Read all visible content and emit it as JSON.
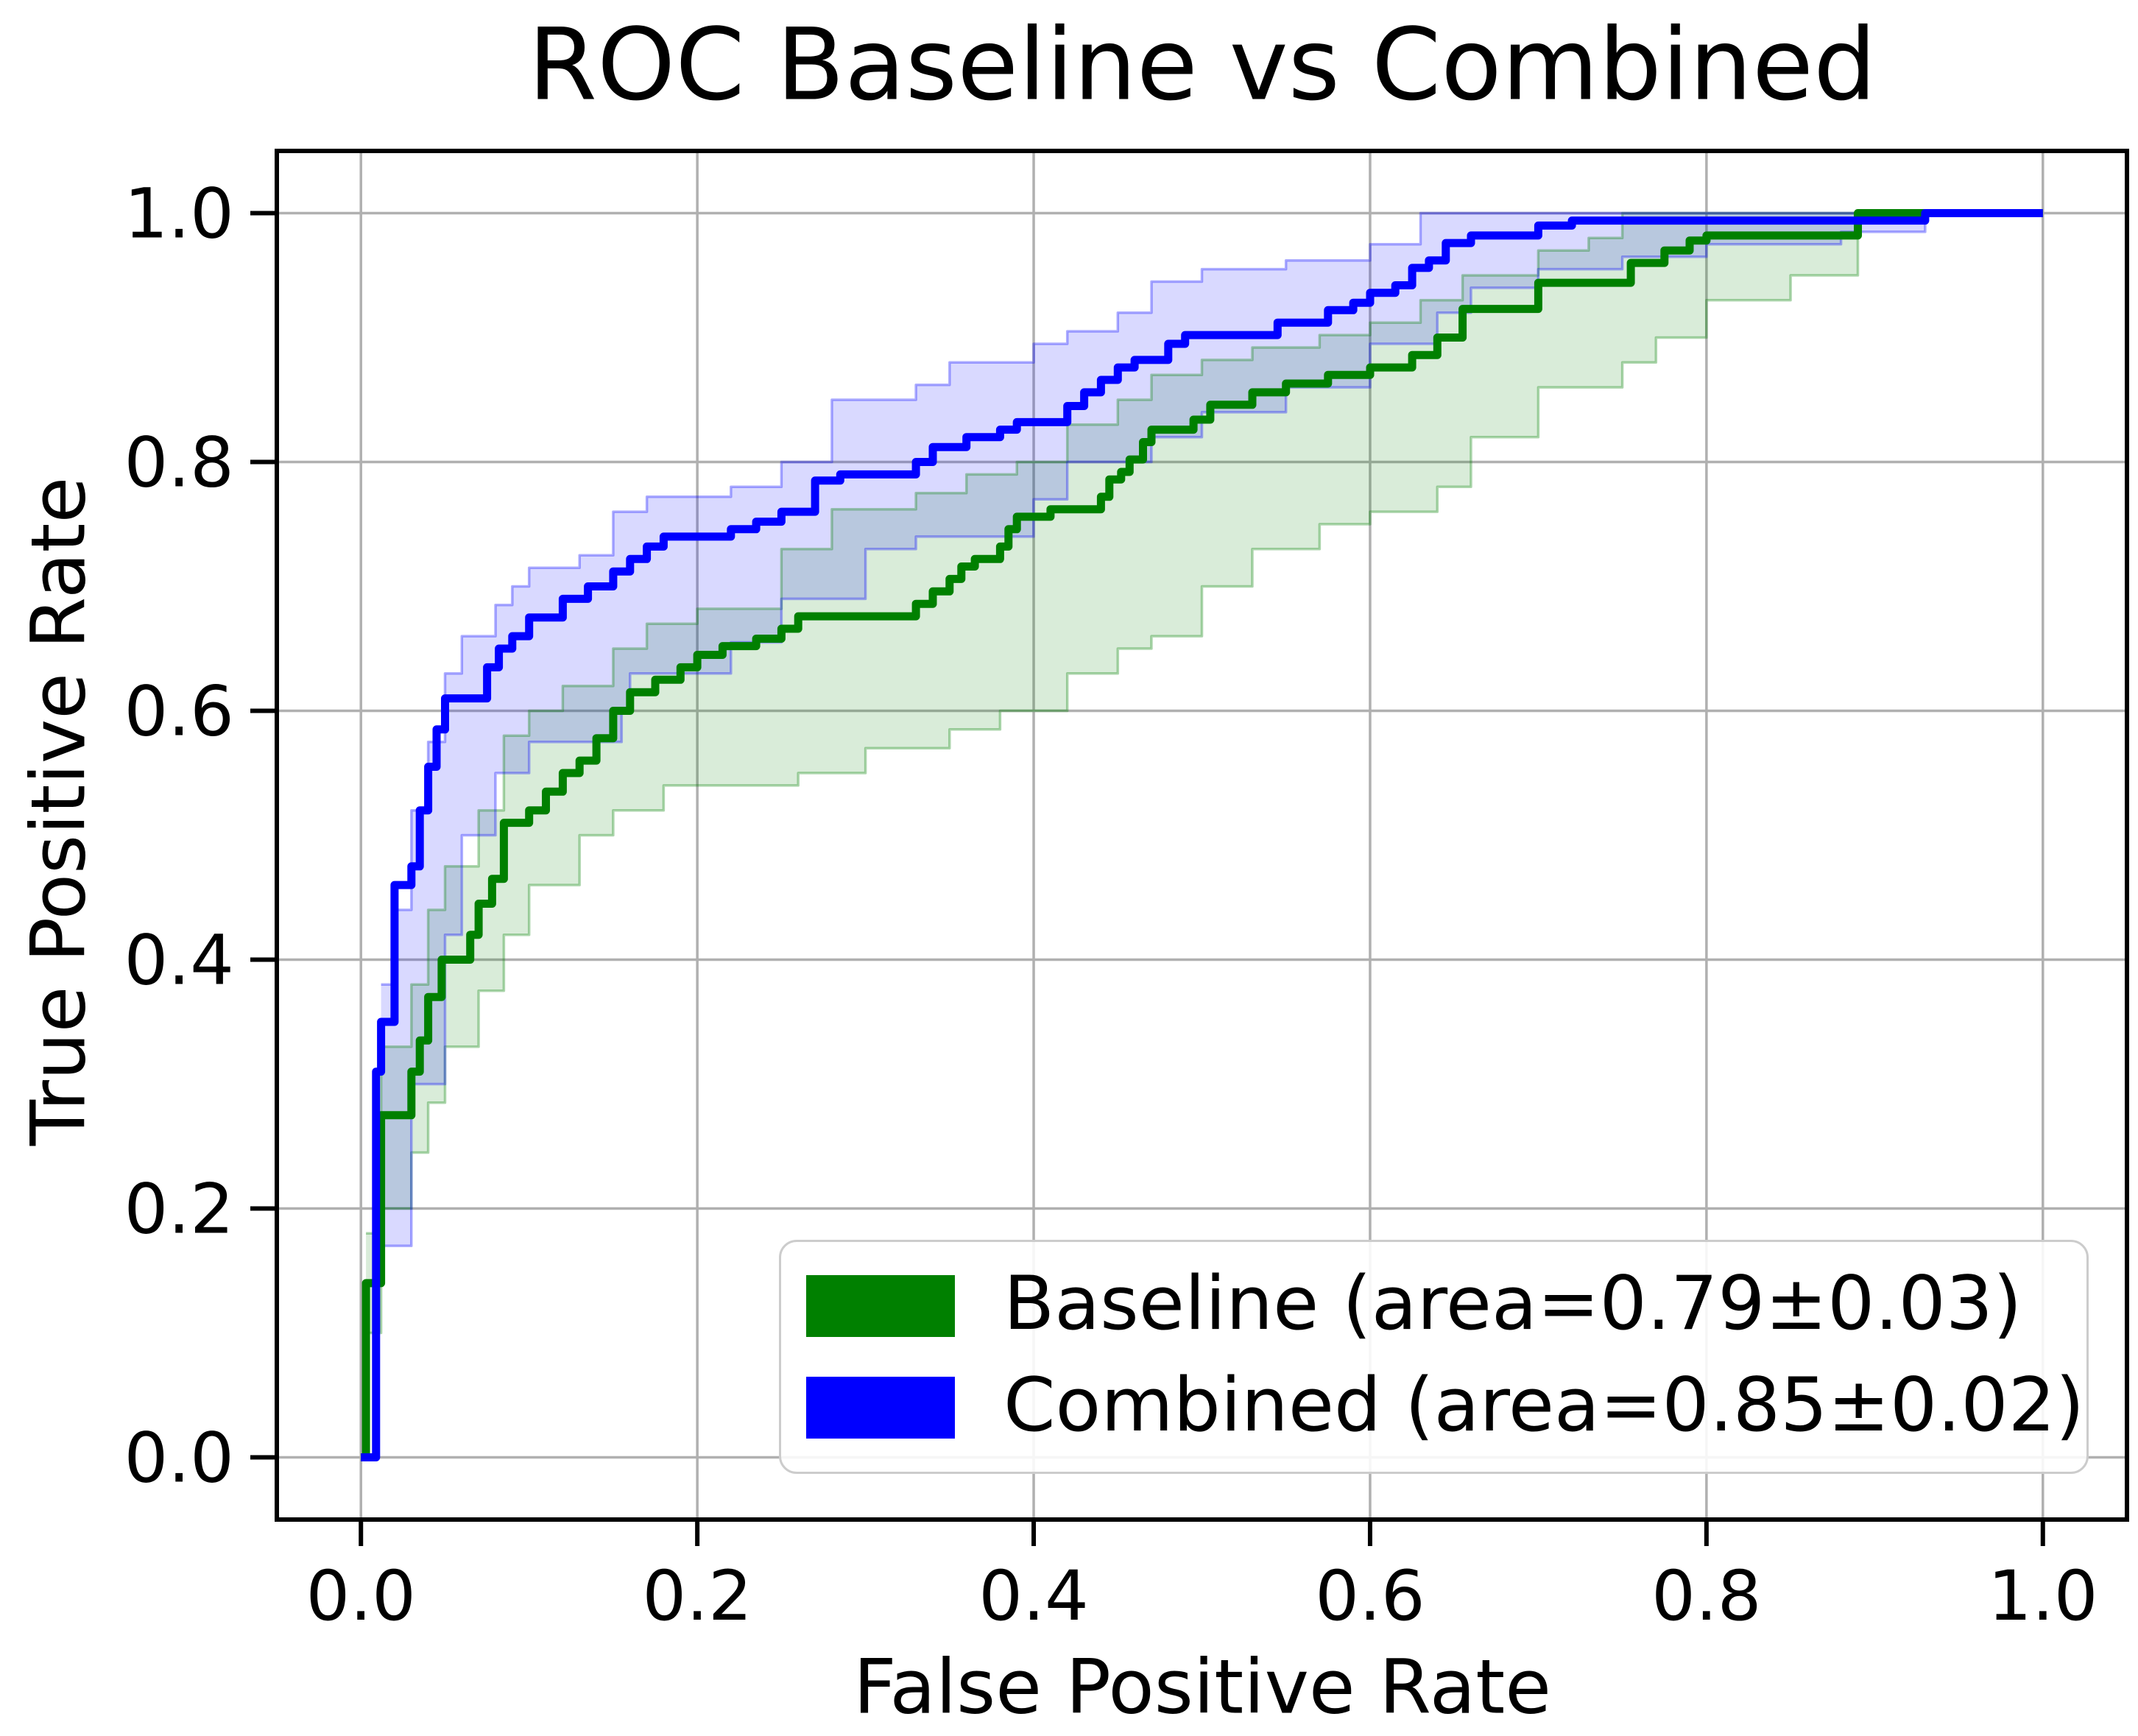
{
  "chart_data": {
    "type": "line",
    "subtype": "roc-step-curves-with-confidence-bands",
    "title": "ROC Baseline vs Combined",
    "xlabel": "False Positive Rate",
    "ylabel": "True Positive Rate",
    "xlim": [
      -0.05,
      1.05
    ],
    "ylim": [
      -0.05,
      1.05
    ],
    "grid": true,
    "grid_color": "#b0b0b0",
    "spine_color": "#000000",
    "background_color": "#ffffff",
    "xticks": [
      0.0,
      0.2,
      0.4,
      0.6,
      0.8,
      1.0
    ],
    "yticks": [
      0.0,
      0.2,
      0.4,
      0.6,
      0.8,
      1.0
    ],
    "x_tick_labels": [
      "0.0",
      "0.2",
      "0.4",
      "0.6",
      "0.8",
      "1.0"
    ],
    "y_tick_labels": [
      "0.0",
      "0.2",
      "0.4",
      "0.6",
      "0.8",
      "1.0"
    ],
    "legend_position": "lower right",
    "legend_border_color": "#cccccc",
    "series": [
      {
        "name": "Baseline (area=0.79±0.03)",
        "short_name": "Baseline",
        "auc": "0.79±0.03",
        "color": "#008000",
        "line_width": 11,
        "band_fill_alpha": 0.15,
        "band_edge_alpha": 0.32,
        "knots": [
          [
            0.003,
            0.14
          ],
          [
            0.012,
            0.275
          ],
          [
            0.03,
            0.31
          ],
          [
            0.035,
            0.335
          ],
          [
            0.04,
            0.37
          ],
          [
            0.048,
            0.4
          ],
          [
            0.065,
            0.42
          ],
          [
            0.07,
            0.445
          ],
          [
            0.078,
            0.465
          ],
          [
            0.085,
            0.51
          ],
          [
            0.1,
            0.52
          ],
          [
            0.11,
            0.535
          ],
          [
            0.12,
            0.55
          ],
          [
            0.13,
            0.56
          ],
          [
            0.14,
            0.578
          ],
          [
            0.15,
            0.6
          ],
          [
            0.16,
            0.615
          ],
          [
            0.175,
            0.625
          ],
          [
            0.19,
            0.635
          ],
          [
            0.2,
            0.645
          ],
          [
            0.215,
            0.652
          ],
          [
            0.235,
            0.658
          ],
          [
            0.25,
            0.666
          ],
          [
            0.26,
            0.676
          ],
          [
            0.33,
            0.686
          ],
          [
            0.34,
            0.696
          ],
          [
            0.35,
            0.706
          ],
          [
            0.357,
            0.716
          ],
          [
            0.365,
            0.722
          ],
          [
            0.38,
            0.732
          ],
          [
            0.385,
            0.746
          ],
          [
            0.39,
            0.756
          ],
          [
            0.41,
            0.762
          ],
          [
            0.44,
            0.772
          ],
          [
            0.445,
            0.786
          ],
          [
            0.452,
            0.792
          ],
          [
            0.457,
            0.802
          ],
          [
            0.465,
            0.816
          ],
          [
            0.47,
            0.826
          ],
          [
            0.495,
            0.834
          ],
          [
            0.505,
            0.846
          ],
          [
            0.53,
            0.856
          ],
          [
            0.55,
            0.863
          ],
          [
            0.575,
            0.87
          ],
          [
            0.6,
            0.876
          ],
          [
            0.625,
            0.886
          ],
          [
            0.64,
            0.9
          ],
          [
            0.655,
            0.923
          ],
          [
            0.7,
            0.944
          ],
          [
            0.755,
            0.96
          ],
          [
            0.775,
            0.97
          ],
          [
            0.79,
            0.978
          ],
          [
            0.8,
            0.982
          ],
          [
            0.89,
            1.0
          ]
        ],
        "band_lower": [
          [
            0.003,
            0.1
          ],
          [
            0.012,
            0.2
          ],
          [
            0.03,
            0.245
          ],
          [
            0.04,
            0.285
          ],
          [
            0.05,
            0.33
          ],
          [
            0.07,
            0.375
          ],
          [
            0.085,
            0.42
          ],
          [
            0.1,
            0.46
          ],
          [
            0.13,
            0.5
          ],
          [
            0.15,
            0.52
          ],
          [
            0.18,
            0.54
          ],
          [
            0.26,
            0.55
          ],
          [
            0.3,
            0.57
          ],
          [
            0.35,
            0.585
          ],
          [
            0.38,
            0.6
          ],
          [
            0.42,
            0.63
          ],
          [
            0.45,
            0.65
          ],
          [
            0.47,
            0.66
          ],
          [
            0.5,
            0.7
          ],
          [
            0.53,
            0.73
          ],
          [
            0.57,
            0.75
          ],
          [
            0.6,
            0.76
          ],
          [
            0.64,
            0.78
          ],
          [
            0.66,
            0.82
          ],
          [
            0.7,
            0.86
          ],
          [
            0.75,
            0.88
          ],
          [
            0.77,
            0.9
          ],
          [
            0.8,
            0.93
          ],
          [
            0.85,
            0.95
          ],
          [
            0.89,
            1.0
          ]
        ],
        "band_upper": [
          [
            0.003,
            0.18
          ],
          [
            0.012,
            0.33
          ],
          [
            0.03,
            0.38
          ],
          [
            0.04,
            0.44
          ],
          [
            0.05,
            0.475
          ],
          [
            0.07,
            0.52
          ],
          [
            0.085,
            0.58
          ],
          [
            0.1,
            0.6
          ],
          [
            0.12,
            0.62
          ],
          [
            0.15,
            0.65
          ],
          [
            0.17,
            0.67
          ],
          [
            0.2,
            0.682
          ],
          [
            0.25,
            0.73
          ],
          [
            0.28,
            0.762
          ],
          [
            0.33,
            0.775
          ],
          [
            0.36,
            0.79
          ],
          [
            0.39,
            0.8
          ],
          [
            0.42,
            0.83
          ],
          [
            0.45,
            0.85
          ],
          [
            0.47,
            0.87
          ],
          [
            0.5,
            0.882
          ],
          [
            0.53,
            0.892
          ],
          [
            0.57,
            0.902
          ],
          [
            0.6,
            0.912
          ],
          [
            0.63,
            0.93
          ],
          [
            0.655,
            0.95
          ],
          [
            0.7,
            0.97
          ],
          [
            0.73,
            0.98
          ],
          [
            0.75,
            1.0
          ]
        ]
      },
      {
        "name": "Combined (area=0.85±0.02)",
        "short_name": "Combined",
        "auc": "0.85±0.02",
        "color": "#0000ff",
        "line_width": 11,
        "band_fill_alpha": 0.15,
        "band_edge_alpha": 0.32,
        "knots": [
          [
            0.009,
            0.31
          ],
          [
            0.012,
            0.35
          ],
          [
            0.02,
            0.46
          ],
          [
            0.03,
            0.475
          ],
          [
            0.035,
            0.52
          ],
          [
            0.04,
            0.555
          ],
          [
            0.045,
            0.585
          ],
          [
            0.05,
            0.61
          ],
          [
            0.075,
            0.635
          ],
          [
            0.082,
            0.65
          ],
          [
            0.09,
            0.66
          ],
          [
            0.1,
            0.675
          ],
          [
            0.12,
            0.69
          ],
          [
            0.135,
            0.7
          ],
          [
            0.15,
            0.712
          ],
          [
            0.16,
            0.722
          ],
          [
            0.17,
            0.732
          ],
          [
            0.18,
            0.74
          ],
          [
            0.22,
            0.746
          ],
          [
            0.235,
            0.752
          ],
          [
            0.25,
            0.76
          ],
          [
            0.27,
            0.785
          ],
          [
            0.285,
            0.79
          ],
          [
            0.33,
            0.8
          ],
          [
            0.34,
            0.812
          ],
          [
            0.36,
            0.82
          ],
          [
            0.38,
            0.826
          ],
          [
            0.39,
            0.832
          ],
          [
            0.42,
            0.845
          ],
          [
            0.43,
            0.856
          ],
          [
            0.44,
            0.866
          ],
          [
            0.45,
            0.876
          ],
          [
            0.46,
            0.882
          ],
          [
            0.48,
            0.895
          ],
          [
            0.49,
            0.902
          ],
          [
            0.545,
            0.912
          ],
          [
            0.575,
            0.922
          ],
          [
            0.59,
            0.928
          ],
          [
            0.6,
            0.936
          ],
          [
            0.615,
            0.942
          ],
          [
            0.625,
            0.956
          ],
          [
            0.635,
            0.962
          ],
          [
            0.645,
            0.976
          ],
          [
            0.66,
            0.982
          ],
          [
            0.7,
            0.99
          ],
          [
            0.72,
            0.994
          ],
          [
            0.93,
            1.0
          ]
        ],
        "band_lower": [
          [
            0.012,
            0.17
          ],
          [
            0.03,
            0.3
          ],
          [
            0.05,
            0.42
          ],
          [
            0.06,
            0.5
          ],
          [
            0.08,
            0.55
          ],
          [
            0.1,
            0.575
          ],
          [
            0.155,
            0.6
          ],
          [
            0.16,
            0.63
          ],
          [
            0.22,
            0.655
          ],
          [
            0.25,
            0.69
          ],
          [
            0.3,
            0.73
          ],
          [
            0.33,
            0.74
          ],
          [
            0.4,
            0.77
          ],
          [
            0.42,
            0.8
          ],
          [
            0.47,
            0.82
          ],
          [
            0.5,
            0.84
          ],
          [
            0.55,
            0.86
          ],
          [
            0.6,
            0.895
          ],
          [
            0.64,
            0.92
          ],
          [
            0.66,
            0.94
          ],
          [
            0.7,
            0.955
          ],
          [
            0.75,
            0.965
          ],
          [
            0.8,
            0.975
          ],
          [
            0.88,
            0.985
          ],
          [
            0.93,
            1.0
          ]
        ],
        "band_upper": [
          [
            0.012,
            0.38
          ],
          [
            0.02,
            0.44
          ],
          [
            0.03,
            0.52
          ],
          [
            0.04,
            0.575
          ],
          [
            0.05,
            0.63
          ],
          [
            0.06,
            0.66
          ],
          [
            0.08,
            0.685
          ],
          [
            0.09,
            0.7
          ],
          [
            0.1,
            0.715
          ],
          [
            0.13,
            0.725
          ],
          [
            0.15,
            0.76
          ],
          [
            0.17,
            0.772
          ],
          [
            0.22,
            0.78
          ],
          [
            0.25,
            0.8
          ],
          [
            0.28,
            0.85
          ],
          [
            0.33,
            0.862
          ],
          [
            0.35,
            0.88
          ],
          [
            0.4,
            0.895
          ],
          [
            0.42,
            0.905
          ],
          [
            0.45,
            0.92
          ],
          [
            0.47,
            0.945
          ],
          [
            0.5,
            0.955
          ],
          [
            0.55,
            0.962
          ],
          [
            0.6,
            0.975
          ],
          [
            0.63,
            1.0
          ]
        ]
      }
    ]
  }
}
